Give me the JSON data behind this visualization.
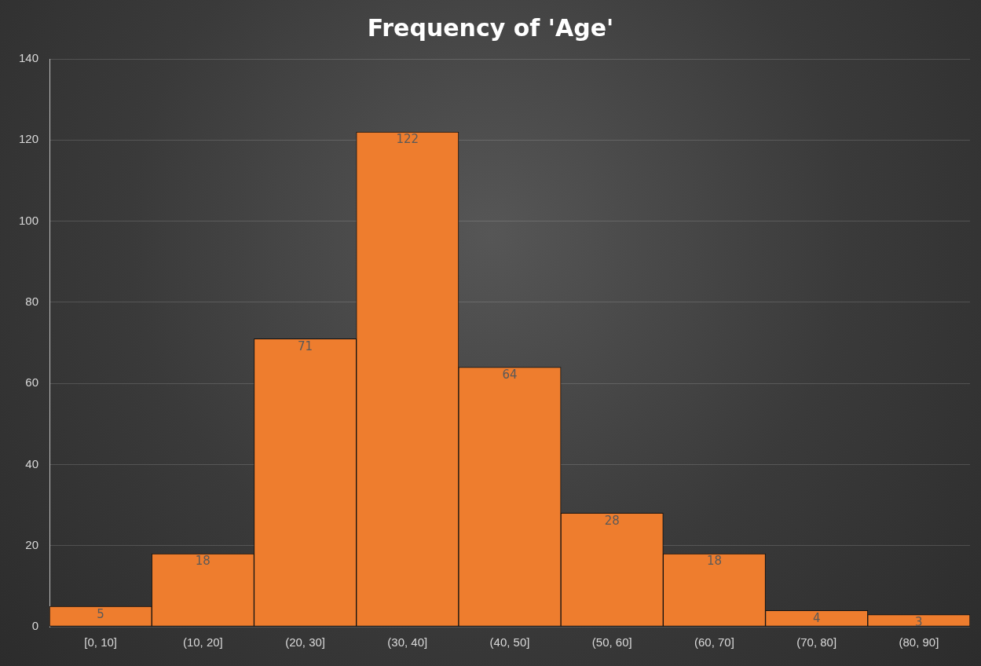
{
  "chart_data": {
    "type": "bar",
    "title": "Frequency of 'Age'",
    "categories": [
      "[0, 10]",
      "(10, 20]",
      "(20, 30]",
      "(30, 40]",
      "(40, 50]",
      "(50, 60]",
      "(60, 70]",
      "(70, 80]",
      "(80, 90]"
    ],
    "values": [
      5,
      18,
      71,
      122,
      64,
      28,
      18,
      4,
      3
    ],
    "color": "#ee7d2e",
    "ylim": [
      0,
      140
    ],
    "yticks": [
      0,
      20,
      40,
      60,
      80,
      100,
      120,
      140
    ],
    "grid": "y",
    "legend": false,
    "data_labels": true
  }
}
